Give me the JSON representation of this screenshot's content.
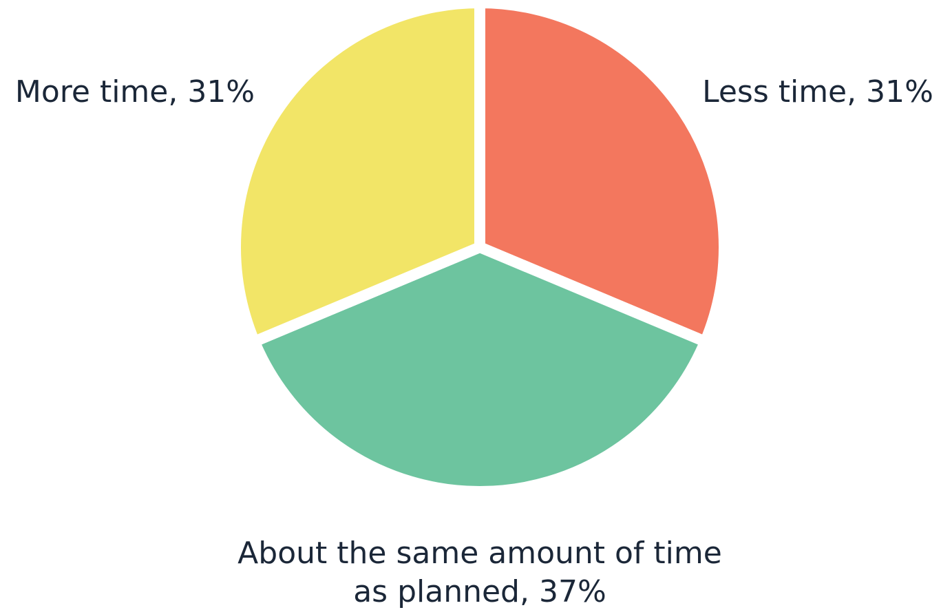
{
  "chart_data": {
    "type": "pie",
    "title": "",
    "start_direction": "12 o'clock, clockwise",
    "slices": [
      {
        "label_lines": [
          "Less time, 31%"
        ],
        "category": "Less time",
        "value": 31,
        "color": "#F3775E"
      },
      {
        "label_lines": [
          "About the same amount of time",
          "as planned, 37%"
        ],
        "category": "About the same amount of time as planned",
        "value": 37,
        "color": "#6DC49F"
      },
      {
        "label_lines": [
          "More time, 31%"
        ],
        "category": "More time",
        "value": 31,
        "color": "#F2E567"
      }
    ]
  }
}
